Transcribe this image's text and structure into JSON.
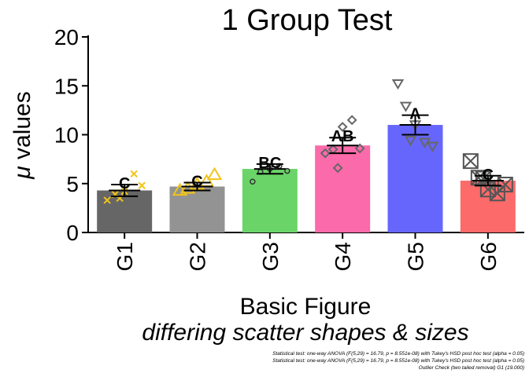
{
  "chart_data": {
    "type": "bar",
    "title": "1 Group Test",
    "ylabel_symbol": "μ",
    "ylabel_text": " values",
    "xlabel": "Basic Figure",
    "subtitle": "differing scatter shapes & sizes",
    "ylim": [
      0,
      20
    ],
    "yticks": [
      0,
      5,
      10,
      15,
      20
    ],
    "grid": false,
    "categories": [
      "G1",
      "G2",
      "G3",
      "G4",
      "G5",
      "G6"
    ],
    "values": [
      4.3,
      4.7,
      6.5,
      8.9,
      11.0,
      5.3
    ],
    "errors": [
      0.6,
      0.4,
      0.5,
      0.8,
      1.0,
      0.5
    ],
    "letters": [
      "C",
      "C",
      "BC",
      "AB",
      "A",
      "C"
    ],
    "bar_colors": [
      "#666666",
      "#939393",
      "#6ad468",
      "#fb6aaa",
      "#6666fd",
      "#fd6a6a"
    ],
    "point_colors": [
      "#f0c419",
      "#f0c419",
      "#333333",
      "#666666",
      "#666666",
      "#555555"
    ],
    "point_markers": [
      "x",
      "triangle-up",
      "circle",
      "diamond",
      "triangle-down",
      "square-x"
    ],
    "points": [
      [
        3.3,
        3.9,
        4.2,
        6.0,
        4.8,
        3.5
      ],
      [
        4.3,
        4.5,
        4.9,
        5.2,
        5.9
      ],
      [
        5.2,
        6.2,
        6.5,
        6.8,
        6.3
      ],
      [
        8.1,
        8.5,
        10.8,
        11.5,
        8.6,
        6.6
      ],
      [
        15.2,
        12.9,
        11.0,
        9.2,
        8.8,
        9.4
      ],
      [
        7.3,
        5.6,
        4.4,
        4.0,
        4.9,
        5.5
      ]
    ],
    "stat_lines": [
      "Statistical test:  one-way ANOVA (F(5,29) = 16.79, p = 8.551e-08) with Tukey's HSD post hoc test (alpha = 0.05)",
      "Statistical test:  one-way ANOVA (F(5,29) = 16.79, p = 8.551e-08) with Tukey's HSD post hoc test (alpha = 0.05)",
      "Outlier Check (two tailed removal) G1 (19.000)"
    ]
  }
}
